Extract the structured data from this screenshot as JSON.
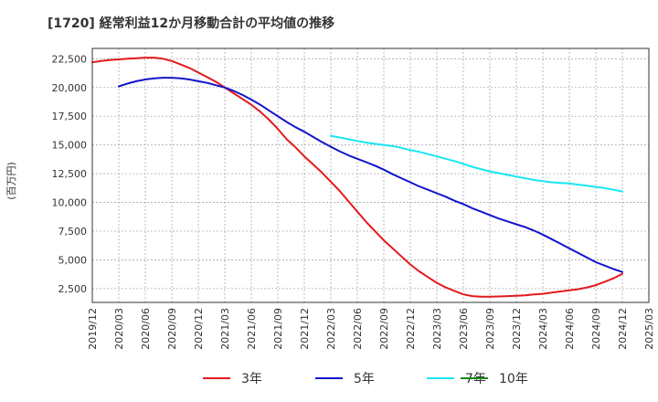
{
  "chart_data": {
    "type": "line",
    "title": "[1720]  経常利益12か月移動合計の平均値の推移",
    "ylabel": "(百万円)",
    "xlabel": "",
    "ylim": [
      1300,
      23400
    ],
    "yticks": [
      2500,
      5000,
      7500,
      10000,
      12500,
      15000,
      17500,
      20000,
      22500
    ],
    "ytick_labels": [
      "2,500",
      "5,000",
      "7,500",
      "10,000",
      "12,500",
      "15,000",
      "17,500",
      "20,000",
      "22,500"
    ],
    "x_ticks": [
      "2019/12",
      "2020/03",
      "2020/06",
      "2020/09",
      "2020/12",
      "2021/03",
      "2021/06",
      "2021/09",
      "2021/12",
      "2022/03",
      "2022/06",
      "2022/09",
      "2022/12",
      "2023/03",
      "2023/06",
      "2023/09",
      "2023/12",
      "2024/03",
      "2024/06",
      "2024/09",
      "2024/12",
      "2025/03"
    ],
    "grid": true,
    "legend_position": "bottom",
    "series": [
      {
        "name": "3年",
        "color": "#e31a1c",
        "x": [
          "2019/12",
          "2020/01",
          "2020/02",
          "2020/03",
          "2020/04",
          "2020/05",
          "2020/06",
          "2020/07",
          "2020/08",
          "2020/09",
          "2020/10",
          "2020/11",
          "2020/12",
          "2021/01",
          "2021/02",
          "2021/03",
          "2021/04",
          "2021/05",
          "2021/06",
          "2021/07",
          "2021/08",
          "2021/09",
          "2021/10",
          "2021/11",
          "2021/12",
          "2022/01",
          "2022/02",
          "2022/03",
          "2022/04",
          "2022/05",
          "2022/06",
          "2022/07",
          "2022/08",
          "2022/09",
          "2022/10",
          "2022/11",
          "2022/12",
          "2023/01",
          "2023/02",
          "2023/03",
          "2023/04",
          "2023/05",
          "2023/06",
          "2023/07",
          "2023/08",
          "2023/09",
          "2023/10",
          "2023/11",
          "2023/12",
          "2024/01",
          "2024/02",
          "2024/03",
          "2024/04",
          "2024/05",
          "2024/06",
          "2024/07",
          "2024/08",
          "2024/09",
          "2024/10",
          "2024/11",
          "2024/12"
        ],
        "values": [
          22200,
          22300,
          22400,
          22450,
          22500,
          22550,
          22600,
          22600,
          22500,
          22300,
          22000,
          21700,
          21300,
          20900,
          20500,
          20000,
          19500,
          19000,
          18500,
          17900,
          17200,
          16400,
          15500,
          14800,
          14000,
          13300,
          12600,
          11800,
          11000,
          10100,
          9200,
          8300,
          7500,
          6700,
          6000,
          5300,
          4600,
          4000,
          3500,
          3000,
          2600,
          2300,
          2000,
          1850,
          1800,
          1800,
          1820,
          1850,
          1880,
          1920,
          2000,
          2050,
          2150,
          2250,
          2350,
          2450,
          2600,
          2800,
          3100,
          3400,
          3800
        ]
      },
      {
        "name": "5年",
        "color": "#1414c8",
        "x": [
          "2020/03",
          "2020/04",
          "2020/05",
          "2020/06",
          "2020/07",
          "2020/08",
          "2020/09",
          "2020/10",
          "2020/11",
          "2020/12",
          "2021/01",
          "2021/02",
          "2021/03",
          "2021/04",
          "2021/05",
          "2021/06",
          "2021/07",
          "2021/08",
          "2021/09",
          "2021/10",
          "2021/11",
          "2021/12",
          "2022/01",
          "2022/02",
          "2022/03",
          "2022/04",
          "2022/05",
          "2022/06",
          "2022/07",
          "2022/08",
          "2022/09",
          "2022/10",
          "2022/11",
          "2022/12",
          "2023/01",
          "2023/02",
          "2023/03",
          "2023/04",
          "2023/05",
          "2023/06",
          "2023/07",
          "2023/08",
          "2023/09",
          "2023/10",
          "2023/11",
          "2023/12",
          "2024/01",
          "2024/02",
          "2024/03",
          "2024/04",
          "2024/05",
          "2024/06",
          "2024/07",
          "2024/08",
          "2024/09",
          "2024/10",
          "2024/11",
          "2024/12"
        ],
        "values": [
          20100,
          20350,
          20550,
          20700,
          20800,
          20850,
          20850,
          20800,
          20700,
          20550,
          20400,
          20200,
          20000,
          19700,
          19350,
          18950,
          18500,
          18000,
          17500,
          17000,
          16550,
          16150,
          15700,
          15250,
          14850,
          14450,
          14100,
          13800,
          13500,
          13200,
          12850,
          12450,
          12100,
          11750,
          11400,
          11100,
          10800,
          10500,
          10150,
          9850,
          9500,
          9200,
          8900,
          8600,
          8350,
          8100,
          7850,
          7550,
          7200,
          6800,
          6400,
          6000,
          5600,
          5200,
          4800,
          4500,
          4200,
          3950
        ]
      },
      {
        "name": "7年",
        "color": "#18e6f0",
        "x": [
          "2022/03",
          "2022/04",
          "2022/05",
          "2022/06",
          "2022/07",
          "2022/08",
          "2022/09",
          "2022/10",
          "2022/11",
          "2022/12",
          "2023/01",
          "2023/02",
          "2023/03",
          "2023/04",
          "2023/05",
          "2023/06",
          "2023/07",
          "2023/08",
          "2023/09",
          "2023/10",
          "2023/11",
          "2023/12",
          "2024/01",
          "2024/02",
          "2024/03",
          "2024/04",
          "2024/05",
          "2024/06",
          "2024/07",
          "2024/08",
          "2024/09",
          "2024/10",
          "2024/11",
          "2024/12"
        ],
        "values": [
          15800,
          15650,
          15500,
          15350,
          15200,
          15100,
          15000,
          14900,
          14750,
          14550,
          14400,
          14200,
          14000,
          13800,
          13600,
          13350,
          13100,
          12900,
          12700,
          12550,
          12400,
          12250,
          12100,
          11950,
          11850,
          11750,
          11700,
          11650,
          11550,
          11450,
          11350,
          11250,
          11100,
          10950
        ]
      },
      {
        "name": "10年",
        "color": "#1a8a1a",
        "x": [],
        "values": []
      }
    ]
  }
}
